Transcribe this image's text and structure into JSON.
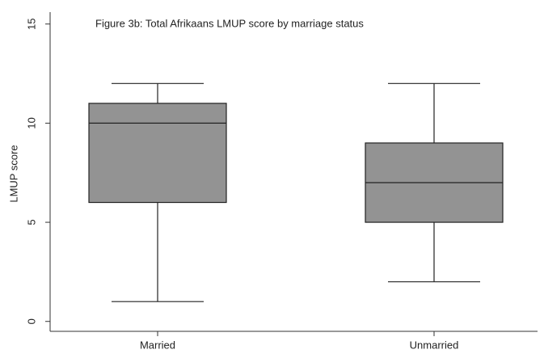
{
  "chart_data": {
    "type": "box",
    "title": "Figure 3b: Total Afrikaans LMUP score by marriage status",
    "y_label": "LMUP score",
    "categories": [
      "Married",
      "Unmarried"
    ],
    "boxes": [
      {
        "min": 1,
        "q1": 6,
        "median": 10,
        "q3": 11,
        "max": 12
      },
      {
        "min": 2,
        "q1": 5,
        "median": 7,
        "q3": 9,
        "max": 12
      }
    ],
    "color": "#939393",
    "ylim": [
      -0.5,
      15.6
    ],
    "yticks": [
      0,
      5,
      10,
      15
    ],
    "grid": false
  }
}
